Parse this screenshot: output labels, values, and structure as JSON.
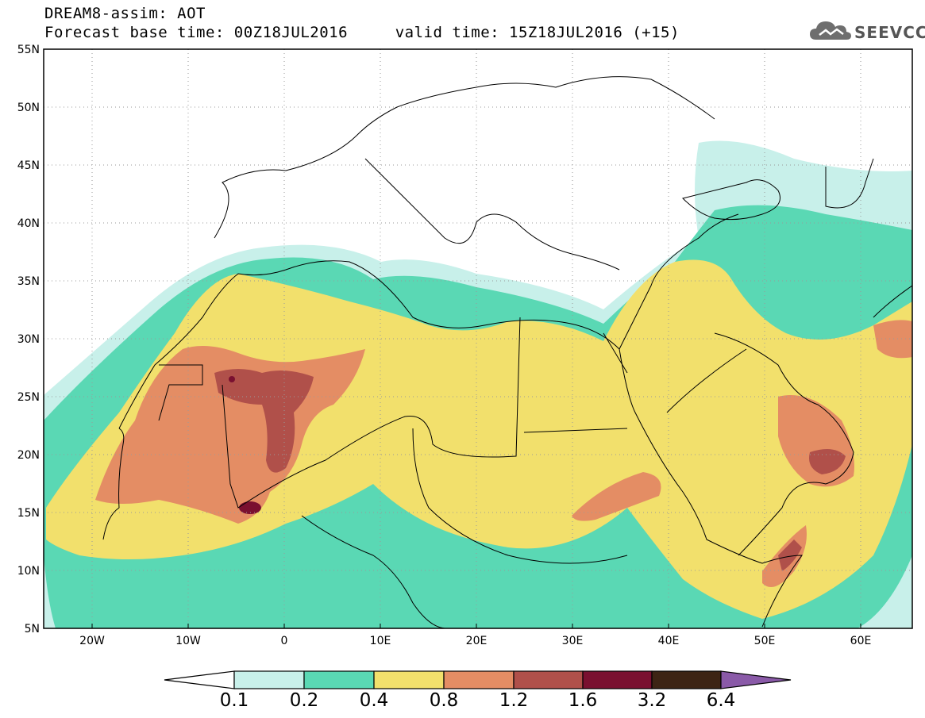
{
  "header": {
    "title_line1": "DREAM8-assim: AOT",
    "title_line2": "Forecast base time: 00Z18JUL2016     valid time: 15Z18JUL2016 (+15)"
  },
  "logo": {
    "text": "SEEVCCC"
  },
  "map": {
    "lat_ticks": [
      "55N",
      "50N",
      "45N",
      "40N",
      "35N",
      "30N",
      "25N",
      "20N",
      "15N",
      "10N",
      "5N"
    ],
    "lon_ticks": [
      "20W",
      "10W",
      "0",
      "10E",
      "20E",
      "30E",
      "40E",
      "50E",
      "60E"
    ],
    "lon_range": [
      -25,
      65
    ],
    "lat_range": [
      5,
      55
    ]
  },
  "colorbar": {
    "labels": [
      "0.1",
      "0.2",
      "0.4",
      "0.8",
      "1.2",
      "1.6",
      "3.2",
      "6.4"
    ],
    "colors": [
      "#c8f0ea",
      "#5ad8b4",
      "#f2e06c",
      "#e48d64",
      "#b0504a",
      "#7a1030",
      "#3d2414",
      "#8a5aa8"
    ]
  }
}
